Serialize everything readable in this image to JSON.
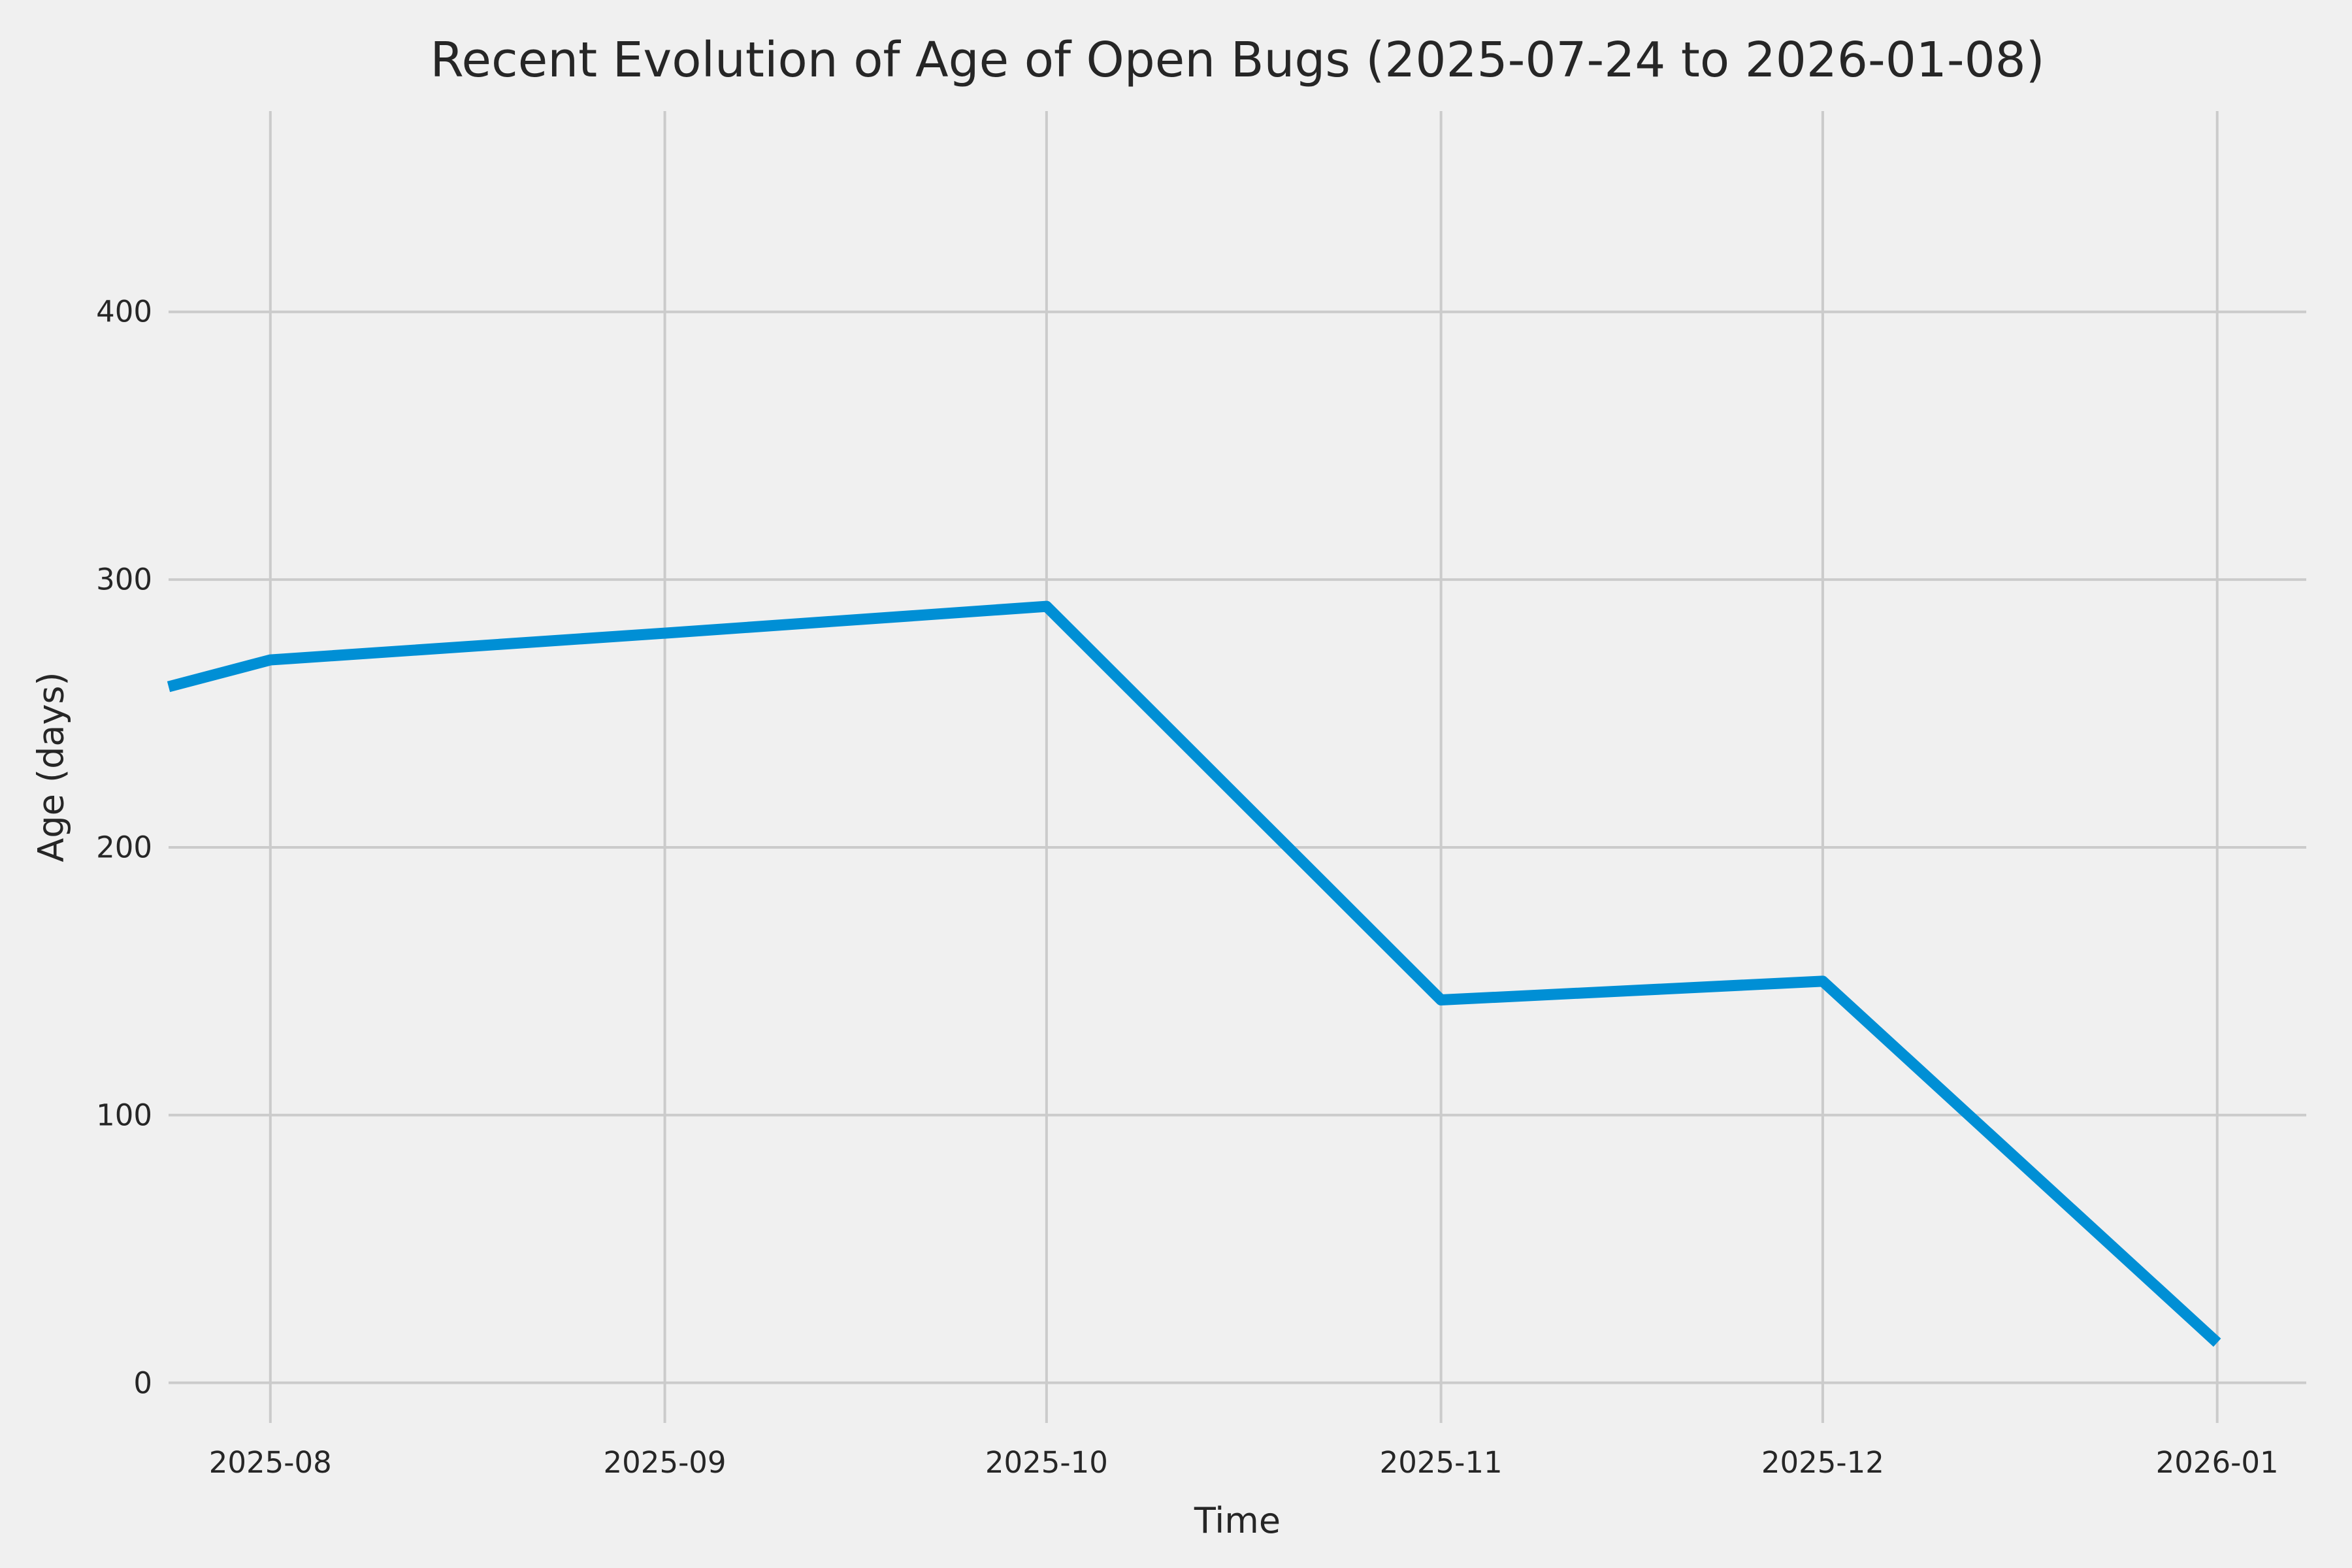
{
  "figure": {
    "background_color": "#f0f0f0"
  },
  "chart_data": {
    "type": "line",
    "title": "Recent Evolution of Age of Open Bugs (2025-07-24 to 2026-01-08)",
    "xlabel": "Time",
    "ylabel": "Age (days)",
    "series": [
      {
        "name": "Age of open bugs",
        "x": [
          "2025-07-24",
          "2025-08-01",
          "2025-09-01",
          "2025-10-01",
          "2025-11-01",
          "2025-12-01",
          "2026-01-01"
        ],
        "values": [
          260,
          270,
          280,
          290,
          143,
          150,
          15
        ]
      }
    ],
    "x_ticks": [
      {
        "date": "2025-08-01",
        "label": "2025-08"
      },
      {
        "date": "2025-09-01",
        "label": "2025-09"
      },
      {
        "date": "2025-10-01",
        "label": "2025-10"
      },
      {
        "date": "2025-11-01",
        "label": "2025-11"
      },
      {
        "date": "2025-12-01",
        "label": "2025-12"
      },
      {
        "date": "2026-01-01",
        "label": "2026-01"
      }
    ],
    "y_ticks": [
      0,
      100,
      200,
      300,
      400
    ],
    "xlim": [
      "2025-07-24",
      "2026-01-08"
    ],
    "ylim": [
      -15,
      475
    ],
    "grid": true,
    "legend": false,
    "line_color": "#008fd5",
    "grid_color": "#cbcbcb",
    "text_color": "#262626",
    "background_color": "#f0f0f0"
  }
}
